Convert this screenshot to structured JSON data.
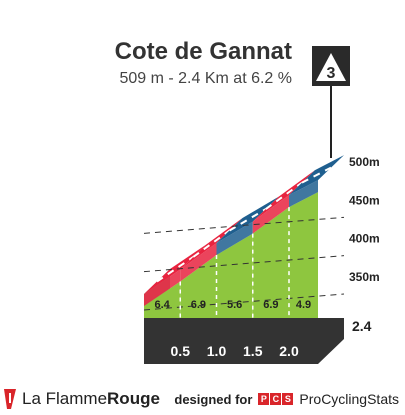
{
  "header": {
    "title": "Cote de Gannat",
    "subtitle": "509 m - 2.4 Km at 6.2 %"
  },
  "marker": {
    "label": "3",
    "icon": "climb-category-icon"
  },
  "chart_data": {
    "type": "area",
    "title": "Cote de Gannat",
    "subtitle": "509 m - 2.4 Km at 6.2 %",
    "total_distance_km": 2.4,
    "end_altitude_m": 509,
    "average_gradient_pct": 6.2,
    "y_ticks": [
      "350m",
      "400m",
      "450m",
      "500m"
    ],
    "y_tick_values": [
      350,
      400,
      450,
      500
    ],
    "x_ticks": [
      "0.5",
      "1.0",
      "1.5",
      "2.0"
    ],
    "x_tick_values": [
      0.5,
      1.0,
      1.5,
      2.0
    ],
    "distance_label": "2.4",
    "segments": [
      {
        "start_km": 0.0,
        "end_km": 0.5,
        "gradient": "6.4",
        "band_color": "#e8233f"
      },
      {
        "start_km": 0.5,
        "end_km": 1.0,
        "gradient": "6.9",
        "band_color": "#e8233f"
      },
      {
        "start_km": 1.0,
        "end_km": 1.5,
        "gradient": "5.6",
        "band_color": "#1f5f8f"
      },
      {
        "start_km": 1.5,
        "end_km": 2.0,
        "gradient": "6.9",
        "band_color": "#e8233f"
      },
      {
        "start_km": 2.0,
        "end_km": 2.4,
        "gradient": "4.9",
        "band_color": "#1f5f8f"
      }
    ],
    "fill_color": "#8ec63f"
  },
  "footer": {
    "brand_prefix": "La Flamme",
    "brand_suffix": "Rouge",
    "designed_for": "designed for",
    "pcs_letters": [
      "P",
      "C",
      "S"
    ],
    "pcs_name": "ProCyclingStats"
  }
}
